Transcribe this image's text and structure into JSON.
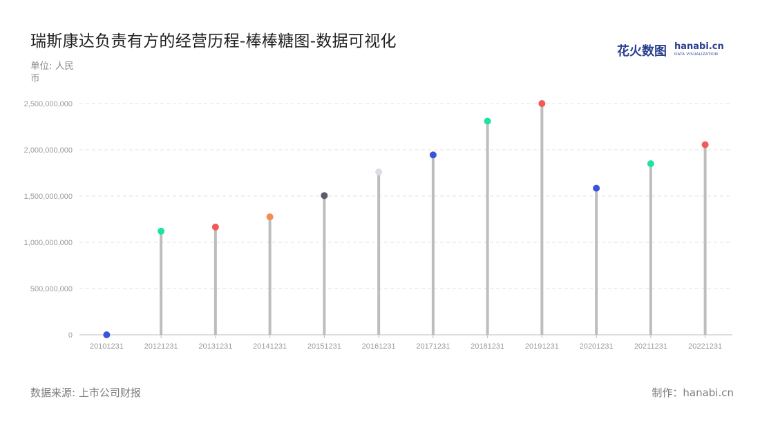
{
  "title": "瑞斯康达负责有方的经营历程-棒棒糖图-数据可视化",
  "unit_label": "单位: 人民币",
  "source_label": "数据来源: 上市公司财报",
  "credit_label": "制作：hanabi.cn",
  "logo": {
    "cn": "花火数图",
    "en": "hanabi.cn",
    "sub": "DATA VISUALIZATION"
  },
  "chart_data": {
    "type": "lollipop",
    "categories": [
      "20101231",
      "20121231",
      "20131231",
      "20141231",
      "20151231",
      "20161231",
      "20171231",
      "20181231",
      "20191231",
      "20201231",
      "20211231",
      "20221231"
    ],
    "values": [
      0,
      1120000000,
      1165000000,
      1275000000,
      1505000000,
      1760000000,
      1945000000,
      2310000000,
      2500000000,
      1585000000,
      1850000000,
      2055000000
    ],
    "point_colors": [
      "#3b55d9",
      "#1ee39a",
      "#f25b55",
      "#f58b4c",
      "#5c5c66",
      "#d9dde6",
      "#3b55d9",
      "#1ee39a",
      "#f25b55",
      "#3b55d9",
      "#1ee39a",
      "#f25b55"
    ],
    "stem_color": "#bdbdbd",
    "ylim": [
      0,
      2500000000
    ],
    "y_ticks": [
      0,
      500000000,
      1000000000,
      1500000000,
      2000000000,
      2500000000
    ],
    "y_tick_labels": [
      "0",
      "500,000,000",
      "1,000,000,000",
      "1,500,000,000",
      "2,000,000,000",
      "2,500,000,000"
    ],
    "grid": true
  }
}
